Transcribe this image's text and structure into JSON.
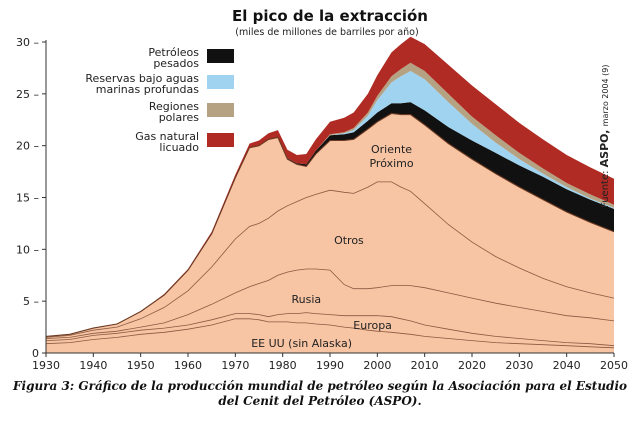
{
  "chart_data": {
    "type": "area",
    "title": "El pico de la extracción",
    "subtitle": "(miles de millones de barriles por año)",
    "xlabel": "",
    "ylabel": "",
    "xlim": [
      1930,
      2050
    ],
    "ylim": [
      0,
      30
    ],
    "x_ticks": [
      "1930",
      "1940",
      "1950",
      "1960",
      "1970",
      "1980",
      "1990",
      "2000",
      "2010",
      "2020",
      "2030",
      "2040",
      "2050"
    ],
    "y_ticks": [
      "0",
      "5",
      "10",
      "15",
      "20",
      "25",
      "30"
    ],
    "grid": false,
    "legend_position": "top-left",
    "x": [
      1930,
      1935,
      1940,
      1945,
      1950,
      1955,
      1960,
      1965,
      1970,
      1973,
      1975,
      1977,
      1979,
      1981,
      1983,
      1985,
      1987,
      1990,
      1993,
      1995,
      1998,
      2000,
      2003,
      2005,
      2007,
      2010,
      2015,
      2020,
      2025,
      2030,
      2035,
      2040,
      2045,
      2050
    ],
    "series": [
      {
        "name": "EE UU (sin Alaska)",
        "color": "#f7c4a4",
        "values": [
          0.9,
          1.0,
          1.3,
          1.5,
          1.8,
          2.0,
          2.3,
          2.7,
          3.3,
          3.3,
          3.2,
          3.0,
          3.0,
          3.0,
          2.9,
          2.9,
          2.8,
          2.7,
          2.5,
          2.4,
          2.2,
          2.1,
          2.0,
          1.9,
          1.8,
          1.6,
          1.4,
          1.2,
          1.0,
          0.9,
          0.8,
          0.7,
          0.6,
          0.5
        ]
      },
      {
        "name": "Europa",
        "color": "#f7c4a4",
        "values": [
          0.3,
          0.3,
          0.4,
          0.4,
          0.4,
          0.4,
          0.4,
          0.5,
          0.5,
          0.5,
          0.5,
          0.5,
          0.7,
          0.8,
          0.9,
          1.0,
          1.0,
          1.0,
          1.1,
          1.2,
          1.4,
          1.5,
          1.5,
          1.4,
          1.3,
          1.1,
          0.9,
          0.7,
          0.6,
          0.5,
          0.4,
          0.3,
          0.3,
          0.2
        ]
      },
      {
        "name": "Rusia",
        "color": "#f7c4a4",
        "values": [
          0.2,
          0.2,
          0.2,
          0.2,
          0.3,
          0.5,
          1.0,
          1.5,
          2.0,
          2.6,
          3.0,
          3.5,
          3.8,
          4.0,
          4.2,
          4.2,
          4.3,
          4.3,
          3.0,
          2.6,
          2.6,
          2.7,
          3.0,
          3.2,
          3.4,
          3.6,
          3.5,
          3.4,
          3.2,
          3.0,
          2.8,
          2.6,
          2.5,
          2.4
        ]
      },
      {
        "name": "Otros",
        "color": "#f7c4a4",
        "values": [
          0.1,
          0.2,
          0.3,
          0.4,
          0.8,
          1.5,
          2.3,
          3.6,
          5.2,
          5.8,
          5.8,
          6.0,
          6.2,
          6.4,
          6.6,
          6.9,
          7.2,
          7.7,
          8.9,
          9.2,
          9.8,
          10.2,
          10.0,
          9.5,
          9.1,
          8.1,
          6.6,
          5.4,
          4.5,
          3.8,
          3.2,
          2.8,
          2.4,
          2.2
        ]
      },
      {
        "name": "Oriente Próximo",
        "color": "#f7c4a4",
        "values": [
          0.1,
          0.1,
          0.2,
          0.3,
          0.7,
          1.2,
          2.0,
          3.2,
          5.9,
          7.6,
          7.5,
          7.6,
          7.1,
          4.5,
          3.6,
          3.0,
          3.9,
          4.8,
          5.0,
          5.2,
          5.6,
          5.8,
          6.6,
          7.0,
          7.4,
          7.6,
          7.8,
          8.0,
          8.0,
          7.8,
          7.6,
          7.2,
          6.8,
          6.4
        ]
      },
      {
        "name": "Petróleos pesados",
        "color": "#111111",
        "values": [
          0,
          0,
          0,
          0,
          0,
          0,
          0,
          0,
          0,
          0,
          0,
          0,
          0,
          0.1,
          0.1,
          0.2,
          0.3,
          0.5,
          0.6,
          0.7,
          0.8,
          0.9,
          1.0,
          1.1,
          1.2,
          1.4,
          1.6,
          1.8,
          2.0,
          2.1,
          2.2,
          2.2,
          2.2,
          2.2
        ]
      },
      {
        "name": "Reservas bajo aguas marinas profundas",
        "color": "#9fd3f0",
        "values": [
          0,
          0,
          0,
          0,
          0,
          0,
          0,
          0,
          0,
          0,
          0,
          0,
          0,
          0,
          0,
          0,
          0,
          0,
          0.1,
          0.2,
          0.5,
          1.2,
          2.0,
          2.6,
          3.0,
          3.0,
          2.4,
          1.6,
          1.0,
          0.6,
          0.3,
          0.2,
          0.1,
          0.1
        ]
      },
      {
        "name": "Regiones polares",
        "color": "#b5a283",
        "values": [
          0,
          0,
          0,
          0,
          0,
          0,
          0,
          0,
          0,
          0,
          0,
          0,
          0,
          0,
          0,
          0,
          0,
          0.1,
          0.1,
          0.2,
          0.3,
          0.4,
          0.6,
          0.7,
          0.8,
          0.8,
          0.8,
          0.7,
          0.7,
          0.6,
          0.5,
          0.4,
          0.4,
          0.3
        ]
      },
      {
        "name": "Gas natural licuado",
        "color": "#b02b24",
        "values": [
          0,
          0,
          0,
          0,
          0,
          0.1,
          0.1,
          0.2,
          0.3,
          0.4,
          0.5,
          0.6,
          0.7,
          0.8,
          0.8,
          1.0,
          1.1,
          1.2,
          1.4,
          1.5,
          1.8,
          2.0,
          2.3,
          2.4,
          2.5,
          2.6,
          2.8,
          3.0,
          3.0,
          2.9,
          2.8,
          2.7,
          2.6,
          2.5
        ]
      }
    ],
    "area_labels": [
      {
        "series": "Oriente Próximo",
        "lines": [
          "Oriente",
          "Próximo"
        ],
        "x": 2003,
        "y": 19.3
      },
      {
        "series": "Otros",
        "lines": [
          "Otros"
        ],
        "x": 1994,
        "y": 10.5
      },
      {
        "series": "Rusia",
        "lines": [
          "Rusia"
        ],
        "x": 1985,
        "y": 4.8
      },
      {
        "series": "Europa",
        "lines": [
          "Europa"
        ],
        "x": 1999,
        "y": 2.3
      },
      {
        "series": "EE UU (sin Alaska)",
        "lines": [
          "EE UU (sin Alaska)"
        ],
        "x": 1984,
        "y": 0.6
      }
    ],
    "legend": [
      {
        "series": "Petróleos pesados",
        "lines": [
          "Petróleos",
          "pesados"
        ],
        "color": "#111111"
      },
      {
        "series": "Reservas bajo aguas marinas profundas",
        "lines": [
          "Reservas bajo aguas",
          "marinas profundas"
        ],
        "color": "#9fd3f0"
      },
      {
        "series": "Regiones polares",
        "lines": [
          "Regiones",
          "polares"
        ],
        "color": "#b5a283"
      },
      {
        "series": "Gas natural licuado",
        "lines": [
          "Gas natural",
          "licuado"
        ],
        "color": "#b02b24"
      }
    ]
  },
  "source_note": {
    "label": "Fuente:",
    "org": "ASPO,",
    "date": "marzo 2004 (9)"
  },
  "caption": "Figura 3: Gráfico de la producción mundial de petróleo según la Asociación para el Estudio del Cenit del Petróleo (ASPO)."
}
